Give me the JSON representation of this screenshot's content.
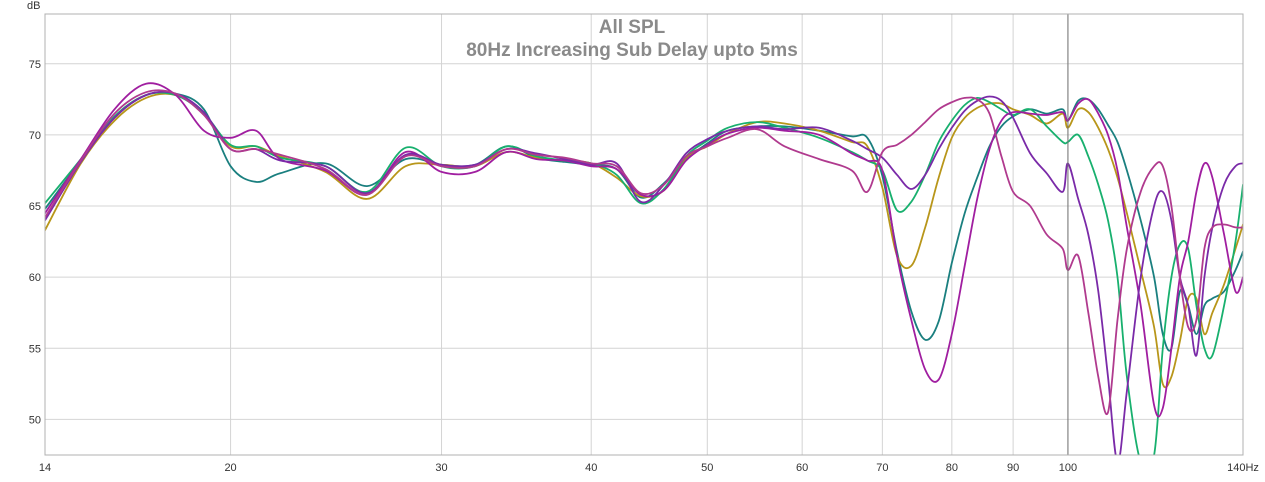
{
  "chart_data": {
    "type": "line",
    "title": "All SPL",
    "subtitle": "80Hz Increasing Sub Delay upto 5ms",
    "ylabel": "dB",
    "x_scale": "log",
    "xlim": [
      14,
      140
    ],
    "ylim": [
      47.5,
      78.5
    ],
    "x_ticks": [
      14,
      20,
      30,
      40,
      50,
      60,
      70,
      80,
      90,
      100,
      140
    ],
    "x_tick_labels": [
      "14",
      "20",
      "30",
      "40",
      "50",
      "60",
      "70",
      "80",
      "90",
      "100",
      "140Hz"
    ],
    "y_ticks": [
      50,
      55,
      60,
      65,
      70,
      75
    ],
    "y_tick_labels": [
      "50",
      "55",
      "60",
      "65",
      "70",
      "75"
    ],
    "grid": true,
    "legend": "none",
    "marker_x": 100,
    "series": [
      {
        "color": "#1a7f7f",
        "x": [
          14,
          15,
          16,
          17,
          18,
          19,
          20,
          21,
          22,
          24,
          26,
          28,
          30,
          32,
          34,
          36,
          38,
          40,
          42,
          44,
          46,
          48,
          50,
          52,
          55,
          58,
          62,
          66,
          68,
          70,
          72,
          74,
          76,
          78,
          80,
          82,
          84,
          86,
          88,
          90,
          93,
          96,
          99,
          100,
          102,
          104,
          106,
          108,
          110,
          112,
          115,
          118,
          120,
          122,
          124,
          126,
          128,
          130,
          132,
          135,
          138,
          140
        ],
        "y": [
          64.8,
          68.2,
          71.2,
          72.8,
          72.9,
          71.8,
          67.8,
          66.7,
          67.3,
          68.0,
          66.4,
          68.3,
          67.9,
          67.9,
          69.2,
          68.4,
          68.1,
          67.9,
          67.6,
          65.6,
          66.6,
          68.3,
          69.4,
          70.3,
          70.6,
          70.6,
          70.3,
          69.9,
          69.8,
          67.1,
          61.8,
          57.6,
          55.6,
          56.9,
          61.0,
          64.5,
          67.0,
          69.2,
          70.6,
          71.3,
          71.8,
          71.5,
          71.8,
          71.0,
          72.4,
          72.5,
          71.8,
          70.7,
          69.5,
          67.5,
          64.0,
          60.0,
          56.0,
          55.0,
          59.0,
          58.0,
          56.0,
          58.0,
          58.5,
          59.0,
          60.5,
          61.8
        ]
      },
      {
        "color": "#b8961a",
        "x": [
          14,
          15,
          16,
          17,
          18,
          19,
          20,
          21,
          22,
          24,
          26,
          28,
          30,
          32,
          34,
          36,
          38,
          40,
          42,
          44,
          46,
          48,
          50,
          52,
          55,
          58,
          62,
          66,
          68,
          70,
          72,
          74,
          76,
          78,
          80,
          82,
          84,
          86,
          88,
          90,
          93,
          96,
          99,
          100,
          102,
          104,
          106,
          108,
          110,
          112,
          115,
          118,
          120,
          122,
          124,
          126,
          128,
          130,
          132,
          135,
          138,
          140
        ],
        "y": [
          63.3,
          68.0,
          71.0,
          72.6,
          72.8,
          71.5,
          69.2,
          69.2,
          68.5,
          67.4,
          65.5,
          67.8,
          67.9,
          67.8,
          68.8,
          68.4,
          68.2,
          68.0,
          67.0,
          65.7,
          66.1,
          68.4,
          69.2,
          70.1,
          70.9,
          70.8,
          70.3,
          69.5,
          69.2,
          66.3,
          61.5,
          60.8,
          63.5,
          67.0,
          69.8,
          71.2,
          71.9,
          72.2,
          72.2,
          71.8,
          71.4,
          70.8,
          71.5,
          70.5,
          71.8,
          71.6,
          70.5,
          69.0,
          67.0,
          64.5,
          60.5,
          56.5,
          52.5,
          53.0,
          55.5,
          58.5,
          58.5,
          56.0,
          57.5,
          59.5,
          62.0,
          63.7
        ]
      },
      {
        "color": "#18b06e",
        "x": [
          14,
          15,
          16,
          17,
          18,
          19,
          20,
          21,
          22,
          24,
          26,
          28,
          30,
          32,
          34,
          36,
          38,
          40,
          42,
          44,
          46,
          48,
          50,
          52,
          55,
          58,
          62,
          66,
          68,
          70,
          72,
          74,
          76,
          78,
          80,
          82,
          84,
          86,
          88,
          90,
          93,
          96,
          99,
          100,
          102,
          104,
          106,
          108,
          110,
          112,
          115,
          118,
          120,
          122,
          124,
          126,
          128,
          130,
          132,
          135,
          138,
          140
        ],
        "y": [
          65.2,
          68.3,
          71.3,
          72.8,
          72.8,
          71.5,
          69.3,
          69.2,
          68.4,
          67.8,
          66.0,
          69.1,
          67.8,
          67.8,
          69.2,
          68.5,
          68.2,
          68.0,
          67.2,
          65.2,
          66.2,
          68.5,
          69.6,
          70.5,
          70.9,
          70.5,
          69.8,
          68.8,
          68.2,
          67.5,
          64.7,
          65.3,
          67.2,
          69.5,
          71.0,
          72.1,
          72.6,
          72.3,
          71.8,
          71.4,
          71.8,
          70.6,
          69.5,
          69.5,
          70.0,
          68.5,
          66.5,
          64.0,
          60.0,
          53.0,
          47.0,
          47.5,
          55.0,
          60.0,
          62.3,
          62.0,
          58.0,
          55.0,
          54.5,
          58.0,
          62.5,
          66.5
        ]
      },
      {
        "color": "#a01ea0",
        "x": [
          14,
          15,
          16,
          17,
          18,
          19,
          20,
          21,
          22,
          24,
          26,
          28,
          30,
          32,
          34,
          36,
          38,
          40,
          42,
          44,
          46,
          48,
          50,
          52,
          55,
          58,
          62,
          66,
          68,
          70,
          72,
          74,
          76,
          78,
          80,
          82,
          84,
          86,
          88,
          90,
          93,
          96,
          99,
          100,
          102,
          104,
          106,
          108,
          110,
          112,
          115,
          118,
          120,
          122,
          124,
          126,
          128,
          130,
          132,
          135,
          138,
          140
        ],
        "y": [
          64.5,
          68.3,
          71.8,
          73.6,
          72.8,
          70.3,
          69.8,
          70.3,
          68.3,
          67.5,
          65.8,
          68.8,
          67.4,
          67.4,
          68.8,
          68.3,
          68.2,
          67.8,
          67.6,
          65.8,
          66.1,
          68.2,
          69.3,
          70.1,
          70.5,
          70.3,
          70.0,
          68.7,
          68.2,
          67.5,
          61.5,
          57.0,
          53.5,
          52.8,
          56.0,
          60.8,
          65.5,
          69.0,
          71.0,
          71.6,
          71.5,
          71.4,
          71.6,
          71.0,
          72.2,
          72.5,
          71.5,
          70.0,
          67.5,
          63.5,
          58.0,
          51.0,
          50.8,
          55.0,
          60.0,
          62.5,
          66.0,
          68.0,
          67.0,
          63.0,
          59.0,
          60.0
        ]
      },
      {
        "color": "#7a2aa8",
        "x": [
          14,
          15,
          16,
          17,
          18,
          19,
          20,
          21,
          22,
          24,
          26,
          28,
          30,
          32,
          34,
          36,
          38,
          40,
          42,
          44,
          46,
          48,
          50,
          52,
          55,
          58,
          62,
          66,
          68,
          70,
          72,
          74,
          76,
          78,
          80,
          82,
          84,
          86,
          88,
          90,
          93,
          96,
          99,
          100,
          102,
          104,
          106,
          108,
          110,
          112,
          115,
          118,
          120,
          122,
          124,
          126,
          128,
          130,
          132,
          135,
          138,
          140
        ],
        "y": [
          64.0,
          68.1,
          71.2,
          72.8,
          72.9,
          71.6,
          69.0,
          69.0,
          68.2,
          67.8,
          65.9,
          68.6,
          67.9,
          67.9,
          69.0,
          68.7,
          68.3,
          67.9,
          68.0,
          65.3,
          66.5,
          68.7,
          69.7,
          70.3,
          70.6,
          70.4,
          70.5,
          69.6,
          69.0,
          68.4,
          67.2,
          66.2,
          67.2,
          69.0,
          70.5,
          71.7,
          72.4,
          72.7,
          72.4,
          71.2,
          68.7,
          67.3,
          66.0,
          68.0,
          65.5,
          63.0,
          59.0,
          53.0,
          47.0,
          52.0,
          60.0,
          65.0,
          66.0,
          64.0,
          60.0,
          58.0,
          54.5,
          60.0,
          63.5,
          66.5,
          67.8,
          68.0
        ]
      },
      {
        "color": "#b03a8e",
        "x": [
          14,
          15,
          16,
          17,
          18,
          19,
          20,
          21,
          22,
          24,
          26,
          28,
          30,
          32,
          34,
          36,
          38,
          40,
          42,
          44,
          46,
          48,
          50,
          52,
          55,
          58,
          62,
          66,
          68,
          70,
          72,
          74,
          76,
          78,
          80,
          82,
          84,
          86,
          88,
          90,
          93,
          96,
          99,
          100,
          102,
          104,
          106,
          108,
          110,
          112,
          115,
          118,
          120,
          122,
          124,
          126,
          128,
          130,
          132,
          135,
          138,
          140
        ],
        "y": [
          64.2,
          68.2,
          71.5,
          73.0,
          72.9,
          71.4,
          69.0,
          69.0,
          68.6,
          67.6,
          65.8,
          68.5,
          67.8,
          67.8,
          69.0,
          68.6,
          68.4,
          68.0,
          67.8,
          65.9,
          66.5,
          68.5,
          69.2,
          69.8,
          70.4,
          69.2,
          68.3,
          67.5,
          66.0,
          68.8,
          69.3,
          70.0,
          70.9,
          71.8,
          72.3,
          72.6,
          72.5,
          71.5,
          68.5,
          66.0,
          65.0,
          63.0,
          62.0,
          60.5,
          61.5,
          57.5,
          53.0,
          50.5,
          57.0,
          62.0,
          66.0,
          67.8,
          67.8,
          65.0,
          60.0,
          56.5,
          57.0,
          62.0,
          63.5,
          63.7,
          63.5,
          63.5
        ]
      }
    ]
  }
}
